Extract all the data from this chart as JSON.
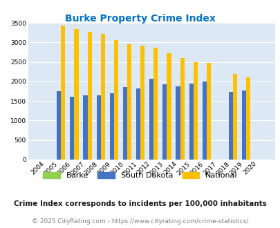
{
  "title": "Burke Property Crime Index",
  "years": [
    2004,
    2005,
    2006,
    2007,
    2008,
    2009,
    2010,
    2011,
    2012,
    2013,
    2014,
    2015,
    2016,
    2017,
    2018,
    2019,
    2020
  ],
  "burke": [
    0,
    0,
    0,
    0,
    0,
    0,
    0,
    0,
    0,
    0,
    0,
    0,
    0,
    0,
    0,
    0,
    0
  ],
  "south_dakota": [
    0,
    1750,
    1610,
    1640,
    1640,
    1700,
    1860,
    1820,
    2060,
    1920,
    1880,
    1950,
    2000,
    0,
    1730,
    1770,
    0
  ],
  "national": [
    0,
    3430,
    3340,
    3270,
    3210,
    3050,
    2960,
    2910,
    2870,
    2730,
    2600,
    2490,
    2470,
    0,
    2200,
    2110,
    0
  ],
  "burke_color": "#92d050",
  "sd_color": "#4472c4",
  "national_color": "#ffc000",
  "bg_color": "#dce9f5",
  "ylim": [
    0,
    3500
  ],
  "yticks": [
    0,
    500,
    1000,
    1500,
    2000,
    2500,
    3000,
    3500
  ],
  "subtitle": "Crime Index corresponds to incidents per 100,000 inhabitants",
  "footer": "© 2025 CityRating.com - https://www.cityrating.com/crime-statistics/",
  "title_color": "#0070c0",
  "subtitle_color": "#1a1a1a",
  "footer_color": "#808080",
  "footer_link_color": "#0070c0"
}
